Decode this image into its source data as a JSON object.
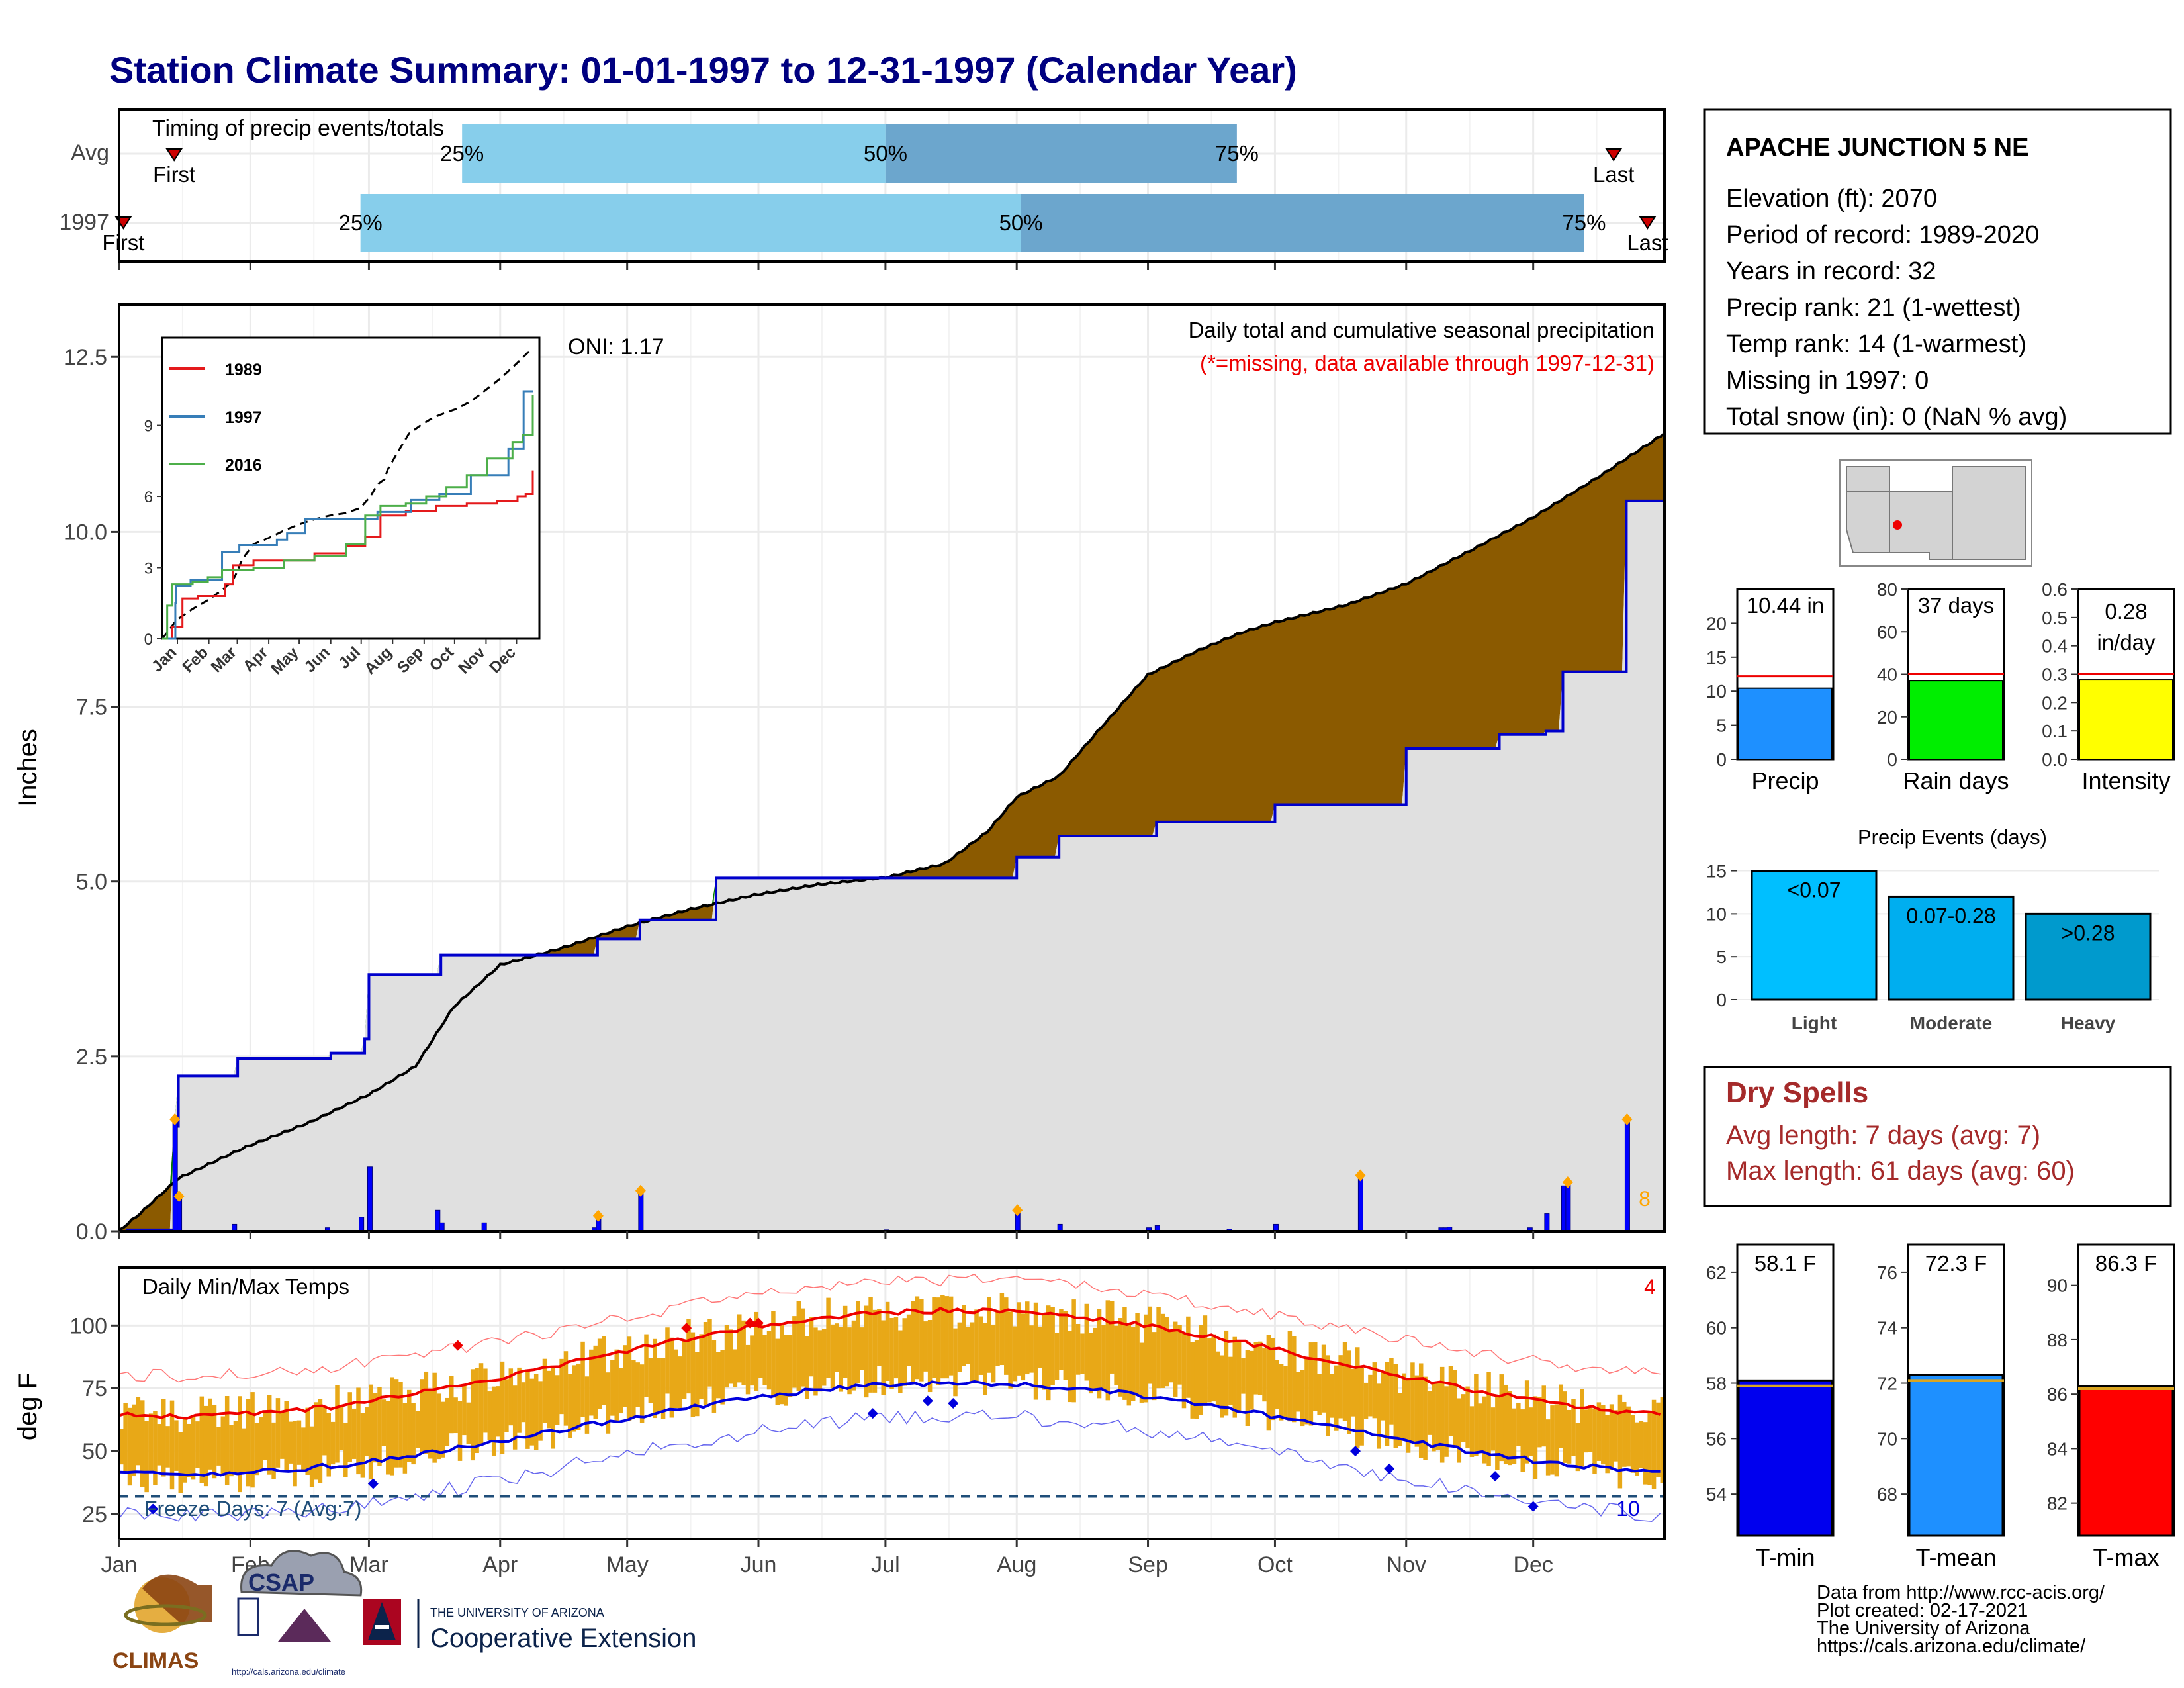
{
  "title": "Station Climate Summary: 01-01-1997 to 12-31-1997 (Calendar Year)",
  "timing": {
    "label": "Timing of precip events/totals",
    "rows": [
      {
        "name": "Avg",
        "first_label": "First",
        "first": "Jan 14",
        "p25": "Mar 23",
        "p50": "Jul 1",
        "p75": "Sep 22",
        "last_label": "Last",
        "last": "Dec 20"
      },
      {
        "name": "1997",
        "first_label": "First",
        "first": "Jan 2",
        "p25": "Feb 27",
        "p50": "Aug 2",
        "p75": "Dec 13",
        "last_label": "Last",
        "last": "Dec 28"
      }
    ],
    "pct_labels": [
      "25%",
      "50%",
      "75%"
    ],
    "colors": {
      "light": "#87CEEB",
      "dark": "#6CA6CD",
      "marker": "#CC0000"
    }
  },
  "months": [
    "Jan",
    "Feb",
    "Mar",
    "Apr",
    "May",
    "Jun",
    "Jul",
    "Aug",
    "Sep",
    "Oct",
    "Nov",
    "Dec"
  ],
  "station": {
    "name": "APACHE JUNCTION 5 NE",
    "lines": [
      "Elevation (ft): 2070",
      "Period of record: 1989-2020",
      "Years in record: 32",
      "Precip rank: 21 (1-wettest)",
      "Temp rank: 14 (1-warmest)",
      "Missing in 1997: 0",
      "Total snow (in): 0 (NaN % avg)"
    ]
  },
  "precip_main": {
    "ylabel": "Inches",
    "yticks": [
      "0.0",
      "2.5",
      "5.0",
      "7.5",
      "10.0",
      "12.5"
    ],
    "ylim": [
      0,
      12.5
    ],
    "oni": "ONI: 1.17",
    "subtitle": "Daily total and cumulative seasonal precipitation",
    "missing_note": "(*=missing, data available through 1997-12-31)",
    "extreme_count": "8",
    "colors": {
      "above": "#008000",
      "below": "#8B5A00",
      "cum_line": "#0000CC",
      "fill": "#E0E0E0",
      "bars": "#0000FF",
      "extreme": "#FFA500"
    }
  },
  "inset": {
    "yticks": [
      "0",
      "3",
      "6",
      "9"
    ],
    "months": [
      "Jan",
      "Feb",
      "Mar",
      "Apr",
      "May",
      "Jun",
      "Jul",
      "Aug",
      "Sep",
      "Oct",
      "Nov",
      "Dec"
    ],
    "legend": [
      {
        "name": "1989",
        "color": "#E41A1C"
      },
      {
        "name": "1997",
        "color": "#377EB8"
      },
      {
        "name": "2016",
        "color": "#4DAF4A"
      }
    ]
  },
  "temps": {
    "ylabel": "deg F",
    "label": "Daily Min/Max Temps",
    "yticks": [
      "25",
      "50",
      "75",
      "100"
    ],
    "ylim": [
      15,
      123
    ],
    "hot_count": "4",
    "freeze_label": "Freeze Days: 7 (Avg:7)",
    "cold_count": "10",
    "colors": {
      "range": "#E8A817",
      "avg_max": "#EE0000",
      "avg_min": "#0000DD",
      "rec_max": "#FF7777",
      "rec_min": "#6666EE",
      "freeze": "#1F4E79"
    }
  },
  "gauges": [
    {
      "label": "Precip",
      "value_text": "10.44 in",
      "value": 10.44,
      "avg": 12.2,
      "ymax": 25,
      "yticks": [
        "0",
        "5",
        "10",
        "15",
        "20"
      ],
      "color": "#1E90FF"
    },
    {
      "label": "Rain days",
      "value_text": "37 days",
      "value": 37,
      "avg": 40,
      "ymax": 80,
      "yticks": [
        "0",
        "20",
        "40",
        "60",
        "80"
      ],
      "color": "#00EE00"
    },
    {
      "label": "Intensity",
      "value_text": "0.28",
      "value_text2": "in/day",
      "value": 0.28,
      "avg": 0.3,
      "ymax": 0.6,
      "yticks": [
        "0.0",
        "0.1",
        "0.2",
        "0.3",
        "0.4",
        "0.5",
        "0.6"
      ],
      "color": "#FFFF00"
    }
  ],
  "events": {
    "title": "Precip Events (days)",
    "yticks": [
      "0",
      "5",
      "10",
      "15"
    ],
    "bars": [
      {
        "label": "Light",
        "bar_text": "<0.07",
        "value": 15,
        "color": "#00BFFF"
      },
      {
        "label": "Moderate",
        "bar_text": "0.07-0.28",
        "value": 12,
        "color": "#00AEEF"
      },
      {
        "label": "Heavy",
        "bar_text": ">0.28",
        "value": 10,
        "color": "#009ACD"
      }
    ]
  },
  "dry_spells": {
    "title": "Dry Spells",
    "lines": [
      "Avg length: 7 days (avg: 7)",
      "Max length: 61 days (avg: 60)"
    ],
    "color": "#A52A2A"
  },
  "temp_gauges": [
    {
      "label": "T-min",
      "value_text": "58.1 F",
      "value": 58.1,
      "avg": 57.9,
      "ymin": 52.5,
      "ymax": 63,
      "yticks": [
        "54",
        "56",
        "58",
        "60",
        "62"
      ],
      "color": "#0000EE"
    },
    {
      "label": "T-mean",
      "value_text": "72.3 F",
      "value": 72.3,
      "avg": 72.1,
      "ymin": 66.5,
      "ymax": 77,
      "yticks": [
        "68",
        "70",
        "72",
        "74",
        "76"
      ],
      "color": "#1E90FF"
    },
    {
      "label": "T-max",
      "value_text": "86.3 F",
      "value": 86.3,
      "avg": 86.2,
      "ymin": 80.8,
      "ymax": 91.5,
      "yticks": [
        "82",
        "84",
        "86",
        "88",
        "90"
      ],
      "color": "#FF0000"
    }
  ],
  "credits": [
    "Data from http://www.rcc-acis.org/",
    "Plot created: 02-17-2021",
    "The University of Arizona",
    "https://cals.arizona.edu/climate/"
  ],
  "logos": {
    "climas": "CLIMAS",
    "csap": "CSAP",
    "csap_url": "http://cals.arizona.edu/climate",
    "ua_small": "THE UNIVERSITY OF ARIZONA",
    "ua_big": "Cooperative Extension"
  }
}
